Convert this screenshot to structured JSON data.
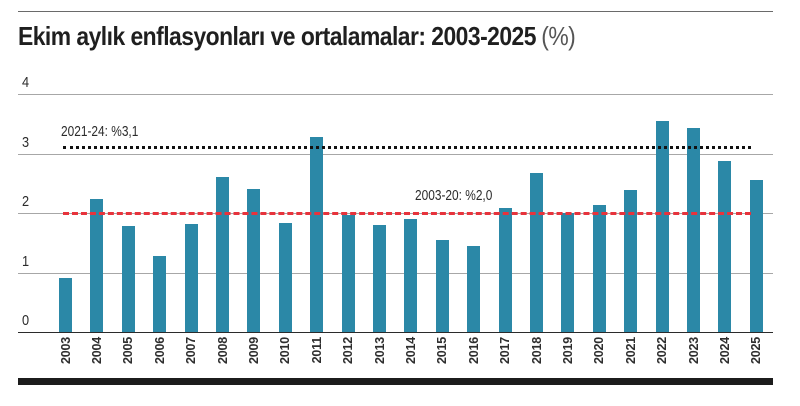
{
  "header": {
    "title": "Ekim aylık enflasyonları ve ortalamalar: 2003-2025",
    "unit": "(%)"
  },
  "colors": {
    "bar": "#2b88a7",
    "avg_2003_20": "#e7333c",
    "avg_2021_24": "#111111",
    "gridline": "#a7a7a7",
    "axis": "#2b2b2b"
  },
  "chart_data": {
    "type": "bar",
    "title": "Ekim aylık enflasyonları ve ortalamalar: 2003-2025 (%)",
    "xlabel": "",
    "ylabel": "",
    "ylim": [
      0,
      4
    ],
    "yticks": [
      "0",
      "1",
      "2",
      "3",
      "4"
    ],
    "grid": true,
    "legend": "none",
    "categories": [
      "2003",
      "2004",
      "2005",
      "2006",
      "2007",
      "2008",
      "2009",
      "2010",
      "2011",
      "2012",
      "2013",
      "2014",
      "2015",
      "2016",
      "2017",
      "2018",
      "2019",
      "2020",
      "2021",
      "2022",
      "2023",
      "2024",
      "2025"
    ],
    "values": [
      0.91,
      2.24,
      1.78,
      1.27,
      1.81,
      2.6,
      2.41,
      1.83,
      3.27,
      1.96,
      1.8,
      1.9,
      1.55,
      1.44,
      2.08,
      2.67,
      2.0,
      2.13,
      2.39,
      3.54,
      3.43,
      2.87,
      2.55
    ],
    "reference_lines": [
      {
        "label": "2021-24: %3,1",
        "value": 3.1,
        "style": "dotted",
        "color": "#111111"
      },
      {
        "label": "2003-20: %2,0",
        "value": 2.0,
        "style": "dashed",
        "color": "#e7333c"
      }
    ]
  }
}
